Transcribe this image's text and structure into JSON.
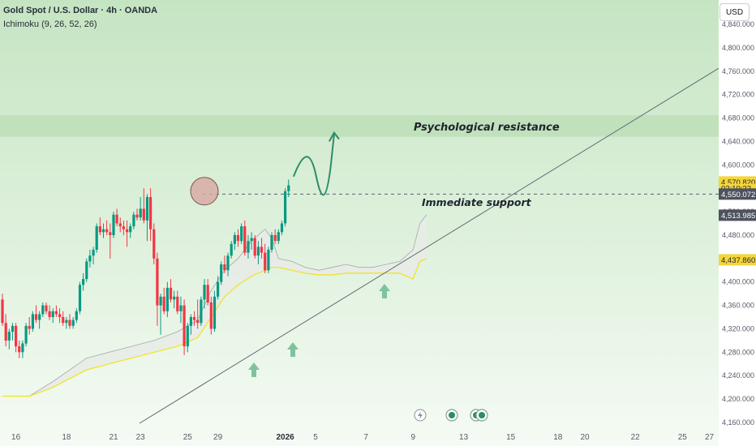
{
  "header": {
    "symbol": "Gold Spot / U.S. Dollar · 4h · OANDA",
    "indicator": "Ichimoku (9, 26, 52, 26)",
    "currency": "USD"
  },
  "colors": {
    "up": "#089981",
    "down": "#f23645",
    "bg_top": "#c5e5c2",
    "bg_bottom": "#f5fbf4",
    "cloud": "#e7ebe8",
    "cloud_line": "#f2e21e",
    "resistance_zone": "#c0e1bb",
    "arrow": "#7fc39d"
  },
  "chart_data": {
    "type": "candlestick",
    "y_axis": {
      "range": [
        4160,
        4840
      ],
      "ticks": [
        "4,160.000",
        "4,200.000",
        "4,240.000",
        "4,280.000",
        "4,320.000",
        "4,360.000",
        "4,400.000",
        "4,440.000",
        "4,480.000",
        "4,520.000",
        "4,560.000",
        "4,600.000",
        "4,640.000",
        "4,680.000",
        "4,720.000",
        "4,760.000",
        "4,800.000",
        "4,840.000"
      ],
      "tick_values": [
        4160,
        4200,
        4240,
        4280,
        4320,
        4360,
        4400,
        4440,
        4480,
        4520,
        4560,
        4600,
        4640,
        4680,
        4720,
        4760,
        4800,
        4840
      ]
    },
    "x_axis": {
      "labels": [
        "16",
        "18",
        "21",
        "23",
        "25",
        "29",
        "2026",
        "5",
        "7",
        "9",
        "13",
        "15",
        "18",
        "20",
        "22",
        "25",
        "27"
      ],
      "label_bars": [
        4,
        19,
        33,
        41,
        55,
        64,
        84,
        93,
        108,
        122,
        137,
        151,
        165,
        173,
        188,
        202,
        210
      ],
      "bold_labels": [
        "2026"
      ]
    },
    "price_labels": [
      {
        "value": "4,570.820",
        "y_value": 4570.82,
        "bg": "#f5d63a",
        "fg": "#1e2430"
      },
      {
        "value": "02:10:22",
        "y_value": 4560.0,
        "bg": "#f5d63a",
        "fg": "#1e2430",
        "small": true
      },
      {
        "value": "4,550.072",
        "y_value": 4550.07,
        "bg": "#4c525e",
        "fg": "#ffffff"
      },
      {
        "value": "4,513.985",
        "y_value": 4513.99,
        "bg": "#4c525e",
        "fg": "#ffffff"
      },
      {
        "value": "4,437.860",
        "y_value": 4437.86,
        "bg": "#f5d63a",
        "fg": "#1e2430"
      }
    ],
    "candles": [
      [
        4370,
        4380,
        4325,
        4330
      ],
      [
        4330,
        4345,
        4290,
        4300
      ],
      [
        4300,
        4320,
        4285,
        4315
      ],
      [
        4315,
        4330,
        4300,
        4325
      ],
      [
        4325,
        4330,
        4280,
        4290
      ],
      [
        4290,
        4300,
        4270,
        4280
      ],
      [
        4280,
        4300,
        4270,
        4295
      ],
      [
        4295,
        4330,
        4290,
        4325
      ],
      [
        4325,
        4340,
        4310,
        4320
      ],
      [
        4320,
        4350,
        4315,
        4345
      ],
      [
        4345,
        4360,
        4330,
        4335
      ],
      [
        4335,
        4350,
        4320,
        4345
      ],
      [
        4345,
        4365,
        4340,
        4360
      ],
      [
        4360,
        4365,
        4345,
        4350
      ],
      [
        4350,
        4360,
        4335,
        4340
      ],
      [
        4340,
        4355,
        4330,
        4350
      ],
      [
        4350,
        4360,
        4340,
        4345
      ],
      [
        4345,
        4355,
        4330,
        4340
      ],
      [
        4340,
        4350,
        4325,
        4330
      ],
      [
        4330,
        4340,
        4320,
        4335
      ],
      [
        4335,
        4345,
        4320,
        4325
      ],
      [
        4325,
        4340,
        4320,
        4335
      ],
      [
        4335,
        4355,
        4330,
        4350
      ],
      [
        4350,
        4400,
        4345,
        4395
      ],
      [
        4395,
        4415,
        4385,
        4405
      ],
      [
        4405,
        4440,
        4400,
        4435
      ],
      [
        4435,
        4455,
        4425,
        4445
      ],
      [
        4445,
        4460,
        4430,
        4455
      ],
      [
        4455,
        4500,
        4450,
        4495
      ],
      [
        4495,
        4510,
        4480,
        4485
      ],
      [
        4485,
        4500,
        4475,
        4490
      ],
      [
        4490,
        4505,
        4480,
        4485
      ],
      [
        4485,
        4500,
        4440,
        4480
      ],
      [
        4480,
        4520,
        4475,
        4515
      ],
      [
        4515,
        4525,
        4495,
        4500
      ],
      [
        4500,
        4510,
        4485,
        4495
      ],
      [
        4495,
        4505,
        4480,
        4490
      ],
      [
        4490,
        4505,
        4460,
        4485
      ],
      [
        4485,
        4500,
        4475,
        4495
      ],
      [
        4495,
        4520,
        4490,
        4515
      ],
      [
        4515,
        4525,
        4505,
        4510
      ],
      [
        4510,
        4545,
        4505,
        4525
      ],
      [
        4525,
        4560,
        4500,
        4505
      ],
      [
        4505,
        4550,
        4470,
        4545
      ],
      [
        4545,
        4560,
        4470,
        4490
      ],
      [
        4490,
        4500,
        4430,
        4440
      ],
      [
        4440,
        4450,
        4325,
        4360
      ],
      [
        4360,
        4380,
        4310,
        4375
      ],
      [
        4375,
        4390,
        4345,
        4350
      ],
      [
        4350,
        4400,
        4340,
        4390
      ],
      [
        4390,
        4405,
        4365,
        4370
      ],
      [
        4370,
        4385,
        4355,
        4375
      ],
      [
        4375,
        4385,
        4345,
        4350
      ],
      [
        4350,
        4375,
        4330,
        4360
      ],
      [
        4360,
        4370,
        4275,
        4290
      ],
      [
        4290,
        4330,
        4280,
        4325
      ],
      [
        4325,
        4345,
        4310,
        4340
      ],
      [
        4340,
        4350,
        4325,
        4335
      ],
      [
        4335,
        4370,
        4320,
        4330
      ],
      [
        4330,
        4375,
        4325,
        4370
      ],
      [
        4370,
        4405,
        4355,
        4395
      ],
      [
        4395,
        4405,
        4360,
        4365
      ],
      [
        4365,
        4375,
        4310,
        4320
      ],
      [
        4320,
        4385,
        4315,
        4375
      ],
      [
        4375,
        4410,
        4370,
        4400
      ],
      [
        4400,
        4435,
        4395,
        4430
      ],
      [
        4430,
        4445,
        4415,
        4420
      ],
      [
        4420,
        4450,
        4410,
        4445
      ],
      [
        4445,
        4470,
        4440,
        4465
      ],
      [
        4465,
        4485,
        4455,
        4480
      ],
      [
        4480,
        4490,
        4460,
        4470
      ],
      [
        4470,
        4500,
        4465,
        4495
      ],
      [
        4495,
        4505,
        4445,
        4450
      ],
      [
        4450,
        4480,
        4440,
        4470
      ],
      [
        4470,
        4485,
        4455,
        4475
      ],
      [
        4475,
        4480,
        4440,
        4445
      ],
      [
        4445,
        4470,
        4430,
        4460
      ],
      [
        4460,
        4475,
        4440,
        4450
      ],
      [
        4450,
        4465,
        4415,
        4420
      ],
      [
        4420,
        4460,
        4415,
        4455
      ],
      [
        4455,
        4485,
        4450,
        4480
      ],
      [
        4480,
        4490,
        4465,
        4470
      ],
      [
        4470,
        4490,
        4465,
        4485
      ],
      [
        4485,
        4505,
        4480,
        4500
      ],
      [
        4500,
        4560,
        4495,
        4555
      ],
      [
        4555,
        4575,
        4545,
        4565
      ]
    ],
    "cloud": {
      "upper": [
        [
          0,
          4205
        ],
        [
          8,
          4205
        ],
        [
          15,
          4230
        ],
        [
          25,
          4270
        ],
        [
          35,
          4285
        ],
        [
          45,
          4300
        ],
        [
          52,
          4315
        ],
        [
          58,
          4335
        ],
        [
          62,
          4385
        ],
        [
          66,
          4420
        ],
        [
          70,
          4440
        ],
        [
          74,
          4470
        ],
        [
          78,
          4490
        ],
        [
          80,
          4475
        ],
        [
          82,
          4440
        ],
        [
          86,
          4435
        ],
        [
          90,
          4425
        ],
        [
          94,
          4420
        ],
        [
          98,
          4425
        ],
        [
          102,
          4430
        ],
        [
          106,
          4425
        ],
        [
          110,
          4425
        ],
        [
          114,
          4430
        ],
        [
          118,
          4435
        ],
        [
          122,
          4455
        ],
        [
          124,
          4500
        ],
        [
          126,
          4515
        ]
      ],
      "lower": [
        [
          0,
          4205
        ],
        [
          8,
          4205
        ],
        [
          15,
          4220
        ],
        [
          25,
          4250
        ],
        [
          35,
          4265
        ],
        [
          45,
          4280
        ],
        [
          52,
          4290
        ],
        [
          58,
          4305
        ],
        [
          62,
          4340
        ],
        [
          66,
          4375
        ],
        [
          70,
          4395
        ],
        [
          74,
          4410
        ],
        [
          78,
          4420
        ],
        [
          80,
          4425
        ],
        [
          82,
          4425
        ],
        [
          86,
          4420
        ],
        [
          90,
          4415
        ],
        [
          94,
          4412
        ],
        [
          98,
          4412
        ],
        [
          102,
          4415
        ],
        [
          106,
          4415
        ],
        [
          110,
          4415
        ],
        [
          114,
          4415
        ],
        [
          118,
          4415
        ],
        [
          122,
          4405
        ],
        [
          124,
          4435
        ],
        [
          126,
          4440
        ]
      ]
    }
  },
  "annotations": {
    "resistance_label": "Psychological resistance",
    "support_label": "Immediate support"
  }
}
